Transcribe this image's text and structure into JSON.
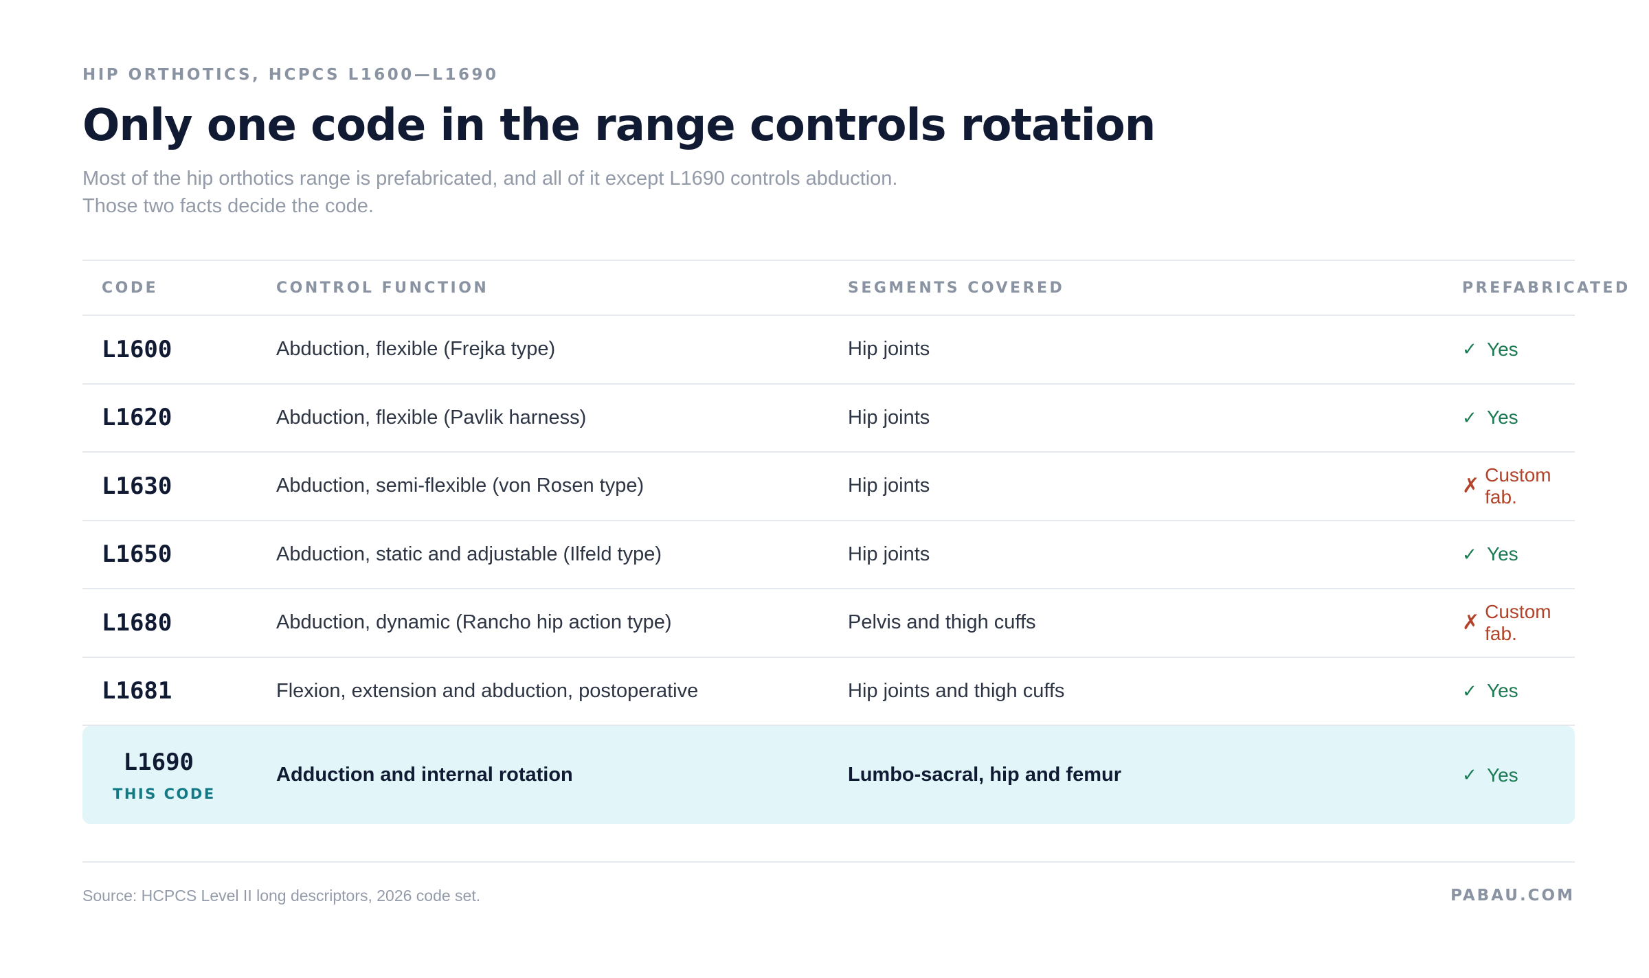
{
  "header": {
    "eyebrow": "HIP ORTHOTICS, HCPCS L1600—L1690",
    "title": "Only one code in the range controls rotation",
    "subtitle_line1": "Most of the hip orthotics range is prefabricated, and all of it except L1690 controls abduction.",
    "subtitle_line2": "Those two facts decide the code."
  },
  "table": {
    "columns": {
      "code": "CODE",
      "function": "CONTROL FUNCTION",
      "segments": "SEGMENTS COVERED",
      "prefabricated": "PREFABRICATED"
    },
    "rows": [
      {
        "code": "L1600",
        "function": "Abduction, flexible (Frejka type)",
        "segments": "Hip joints",
        "prefab": "Yes",
        "prefab_mark": "✓",
        "status": "yes"
      },
      {
        "code": "L1620",
        "function": "Abduction, flexible (Pavlik harness)",
        "segments": "Hip joints",
        "prefab": "Yes",
        "prefab_mark": "✓",
        "status": "yes"
      },
      {
        "code": "L1630",
        "function": "Abduction, semi-flexible (von Rosen type)",
        "segments": "Hip joints",
        "prefab": "Custom fab.",
        "prefab_mark": "✗",
        "status": "no"
      },
      {
        "code": "L1650",
        "function": "Abduction, static and adjustable (Ilfeld type)",
        "segments": "Hip joints",
        "prefab": "Yes",
        "prefab_mark": "✓",
        "status": "yes"
      },
      {
        "code": "L1680",
        "function": "Abduction, dynamic (Rancho hip action type)",
        "segments": "Pelvis and thigh cuffs",
        "prefab": "Custom fab.",
        "prefab_mark": "✗",
        "status": "no"
      },
      {
        "code": "L1681",
        "function": "Flexion, extension and abduction, postoperative",
        "segments": "Hip joints and thigh cuffs",
        "prefab": "Yes",
        "prefab_mark": "✓",
        "status": "yes"
      }
    ],
    "highlight_row": {
      "code": "L1690",
      "badge": "THIS CODE",
      "function": "Adduction and internal rotation",
      "segments": "Lumbo-sacral, hip and femur",
      "prefab": "Yes",
      "prefab_mark": "✓",
      "status": "yes"
    }
  },
  "footer": {
    "source": "Source: HCPCS Level II long descriptors, 2026 code set.",
    "brand": "PABAU.COM"
  },
  "colors": {
    "title": "#111a33",
    "muted": "#939aa8",
    "yes": "#1a7a52",
    "no": "#b0432a",
    "highlight_bg": "#e2f5f9",
    "badge": "#137a85"
  }
}
